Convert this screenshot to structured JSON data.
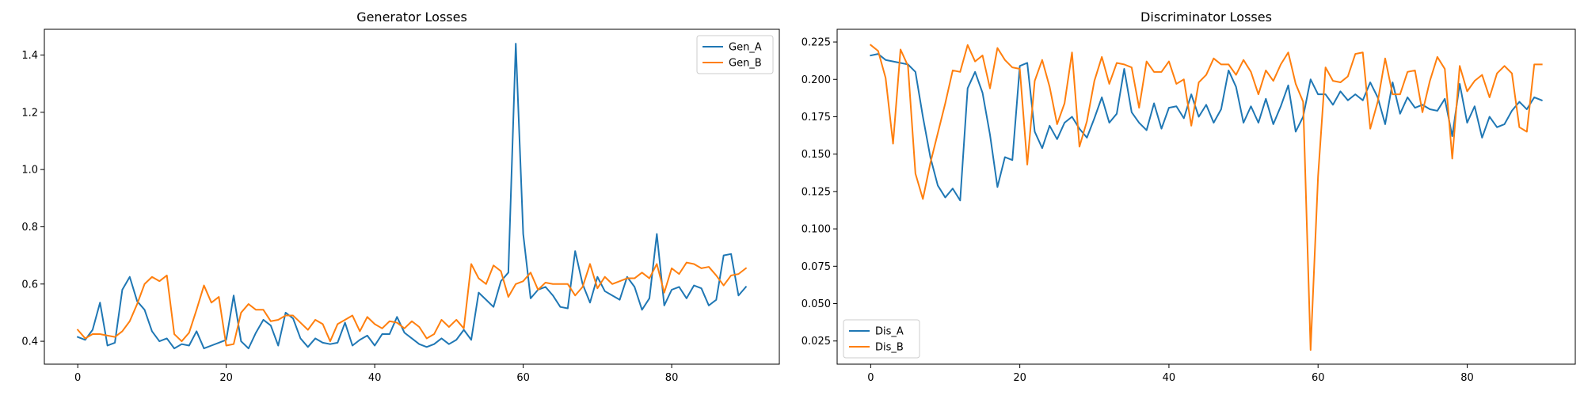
{
  "chart_data": [
    {
      "type": "line",
      "title": "Generator Losses",
      "xlabel": "",
      "ylabel": "",
      "xlim": [
        -4.5,
        94.5
      ],
      "ylim": [
        0.32,
        1.49
      ],
      "xticks": [
        0,
        20,
        40,
        60,
        80
      ],
      "yticks": [
        0.4,
        0.6,
        0.8,
        1.0,
        1.2,
        1.4
      ],
      "ytick_format": 1,
      "grid": false,
      "legend": "top-right",
      "series": [
        {
          "name": "Gen_A",
          "color": "#1f77b4",
          "values": [
            0.415,
            0.405,
            0.44,
            0.535,
            0.385,
            0.395,
            0.58,
            0.625,
            0.54,
            0.51,
            0.435,
            0.4,
            0.41,
            0.375,
            0.39,
            0.385,
            0.435,
            0.375,
            0.385,
            0.395,
            0.405,
            0.56,
            0.4,
            0.375,
            0.43,
            0.475,
            0.455,
            0.385,
            0.5,
            0.48,
            0.41,
            0.38,
            0.41,
            0.395,
            0.39,
            0.395,
            0.465,
            0.385,
            0.405,
            0.42,
            0.385,
            0.425,
            0.425,
            0.485,
            0.43,
            0.41,
            0.39,
            0.38,
            0.39,
            0.41,
            0.39,
            0.405,
            0.44,
            0.405,
            0.57,
            0.545,
            0.52,
            0.61,
            0.64,
            1.44,
            0.775,
            0.55,
            0.58,
            0.59,
            0.56,
            0.52,
            0.515,
            0.715,
            0.6,
            0.535,
            0.625,
            0.575,
            0.56,
            0.545,
            0.625,
            0.59,
            0.51,
            0.55,
            0.775,
            0.525,
            0.58,
            0.59,
            0.55,
            0.595,
            0.585,
            0.525,
            0.545,
            0.7,
            0.705,
            0.56,
            0.59
          ]
        },
        {
          "name": "Gen_B",
          "color": "#ff7f0e",
          "values": [
            0.44,
            0.41,
            0.425,
            0.425,
            0.42,
            0.415,
            0.435,
            0.47,
            0.53,
            0.6,
            0.625,
            0.61,
            0.63,
            0.425,
            0.4,
            0.43,
            0.51,
            0.595,
            0.535,
            0.555,
            0.385,
            0.39,
            0.5,
            0.53,
            0.51,
            0.51,
            0.47,
            0.475,
            0.49,
            0.49,
            0.465,
            0.44,
            0.475,
            0.46,
            0.4,
            0.46,
            0.475,
            0.49,
            0.435,
            0.485,
            0.46,
            0.445,
            0.47,
            0.465,
            0.445,
            0.47,
            0.45,
            0.41,
            0.425,
            0.475,
            0.45,
            0.475,
            0.445,
            0.67,
            0.62,
            0.6,
            0.665,
            0.645,
            0.555,
            0.6,
            0.61,
            0.64,
            0.58,
            0.605,
            0.6,
            0.6,
            0.6,
            0.56,
            0.59,
            0.67,
            0.585,
            0.625,
            0.6,
            0.61,
            0.62,
            0.62,
            0.64,
            0.62,
            0.67,
            0.57,
            0.655,
            0.635,
            0.675,
            0.67,
            0.655,
            0.66,
            0.63,
            0.595,
            0.63,
            0.635,
            0.655
          ]
        }
      ]
    },
    {
      "type": "line",
      "title": "Discriminator Losses",
      "xlabel": "",
      "ylabel": "",
      "xlim": [
        -4.5,
        94.5
      ],
      "ylim": [
        0.0095,
        0.2335
      ],
      "xticks": [
        0,
        20,
        40,
        60,
        80
      ],
      "yticks": [
        0.025,
        0.05,
        0.075,
        0.1,
        0.125,
        0.15,
        0.175,
        0.2,
        0.225
      ],
      "ytick_format": 3,
      "grid": false,
      "legend": "bottom-left",
      "series": [
        {
          "name": "Dis_A",
          "color": "#1f77b4",
          "values": [
            0.216,
            0.217,
            0.213,
            0.212,
            0.211,
            0.21,
            0.205,
            0.175,
            0.148,
            0.129,
            0.121,
            0.127,
            0.119,
            0.194,
            0.205,
            0.191,
            0.163,
            0.128,
            0.148,
            0.146,
            0.209,
            0.211,
            0.165,
            0.154,
            0.169,
            0.16,
            0.171,
            0.175,
            0.167,
            0.161,
            0.174,
            0.188,
            0.171,
            0.177,
            0.207,
            0.178,
            0.171,
            0.166,
            0.184,
            0.167,
            0.181,
            0.182,
            0.174,
            0.19,
            0.175,
            0.183,
            0.171,
            0.18,
            0.206,
            0.195,
            0.171,
            0.182,
            0.171,
            0.187,
            0.17,
            0.182,
            0.196,
            0.165,
            0.175,
            0.2,
            0.19,
            0.19,
            0.183,
            0.192,
            0.186,
            0.19,
            0.186,
            0.198,
            0.188,
            0.17,
            0.198,
            0.177,
            0.188,
            0.181,
            0.183,
            0.18,
            0.179,
            0.187,
            0.162,
            0.197,
            0.171,
            0.182,
            0.161,
            0.175,
            0.168,
            0.17,
            0.179,
            0.185,
            0.18,
            0.188,
            0.186
          ]
        },
        {
          "name": "Dis_B",
          "color": "#ff7f0e",
          "values": [
            0.223,
            0.219,
            0.201,
            0.157,
            0.22,
            0.209,
            0.137,
            0.12,
            0.144,
            0.164,
            0.184,
            0.206,
            0.205,
            0.223,
            0.212,
            0.216,
            0.194,
            0.221,
            0.213,
            0.208,
            0.207,
            0.143,
            0.199,
            0.213,
            0.195,
            0.17,
            0.184,
            0.218,
            0.155,
            0.172,
            0.199,
            0.215,
            0.197,
            0.211,
            0.21,
            0.208,
            0.181,
            0.212,
            0.205,
            0.205,
            0.212,
            0.197,
            0.2,
            0.169,
            0.198,
            0.203,
            0.214,
            0.21,
            0.21,
            0.203,
            0.213,
            0.205,
            0.19,
            0.206,
            0.199,
            0.21,
            0.218,
            0.197,
            0.185,
            0.019,
            0.135,
            0.208,
            0.199,
            0.198,
            0.202,
            0.217,
            0.218,
            0.167,
            0.185,
            0.214,
            0.19,
            0.19,
            0.205,
            0.206,
            0.178,
            0.199,
            0.215,
            0.207,
            0.147,
            0.209,
            0.192,
            0.199,
            0.203,
            0.188,
            0.204,
            0.209,
            0.204,
            0.168,
            0.165,
            0.21,
            0.21
          ]
        }
      ]
    }
  ]
}
